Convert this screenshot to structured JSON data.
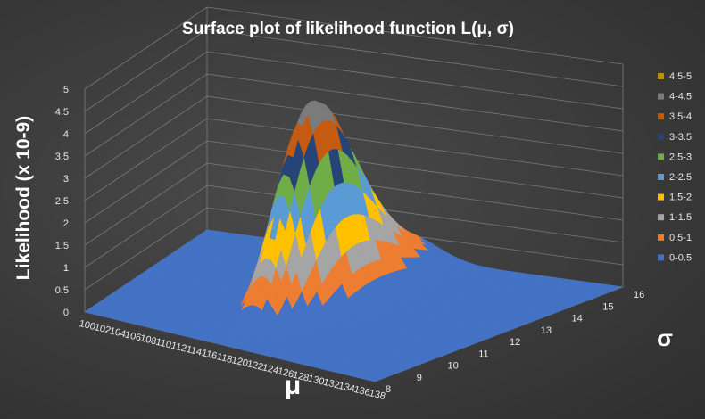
{
  "chart_data": {
    "type": "surface",
    "title": "Surface plot of likelihood function L(μ, σ)",
    "xlabel": "μ",
    "ylabel": "σ",
    "zlabel": "Likelihood (x 10-9)",
    "x_ticks": [
      "100",
      "102",
      "104",
      "106",
      "108",
      "110",
      "112",
      "114",
      "116",
      "118",
      "120",
      "122",
      "124",
      "126",
      "128",
      "130",
      "132",
      "134",
      "136",
      "138"
    ],
    "y_ticks": [
      "8",
      "9",
      "10",
      "11",
      "12",
      "13",
      "14",
      "15",
      "16"
    ],
    "z_ticks": [
      "0",
      "0.5",
      "1",
      "1.5",
      "2",
      "2.5",
      "3",
      "3.5",
      "4",
      "4.5",
      "5"
    ],
    "zlim": [
      0,
      5
    ],
    "peak": {
      "mu": 118,
      "sigma": 12,
      "value": 4.5
    },
    "legend_position": "right",
    "bands": [
      {
        "range": "0-0.5",
        "color": "#4472c4"
      },
      {
        "range": "0.5-1",
        "color": "#ed7d31"
      },
      {
        "range": "1-1.5",
        "color": "#a5a5a5"
      },
      {
        "range": "1.5-2",
        "color": "#ffc000"
      },
      {
        "range": "2-2.5",
        "color": "#5b9bd5"
      },
      {
        "range": "2.5-3",
        "color": "#70ad47"
      },
      {
        "range": "3-3.5",
        "color": "#264478"
      },
      {
        "range": "3.5-4",
        "color": "#c55a11"
      },
      {
        "range": "4-4.5",
        "color": "#7b7b7b"
      },
      {
        "range": "4.5-5",
        "color": "#bf8f00"
      }
    ]
  }
}
